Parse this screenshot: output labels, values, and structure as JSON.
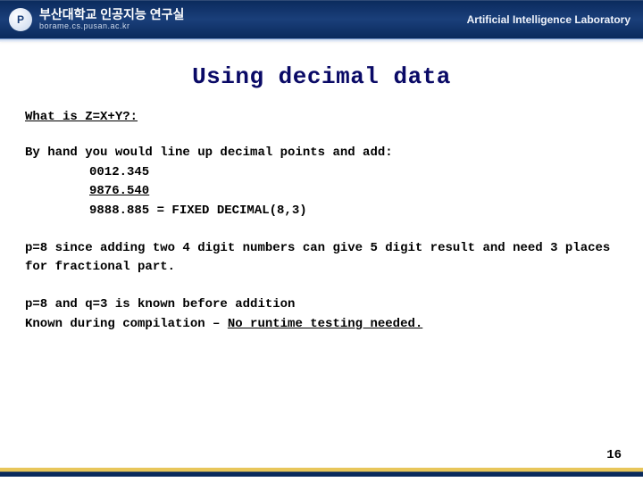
{
  "header": {
    "logo_letter": "P",
    "korean": "부산대학교 인공지능 연구실",
    "url": "borame.cs.pusan.ac.kr",
    "lab": "Artificial Intelligence Laboratory"
  },
  "title": "Using decimal data",
  "section_label": "What is Z=X+Y?:",
  "byhand_intro": "By hand you would line up decimal points and add:",
  "vals": {
    "a": "0012.345",
    "b": "9876.540",
    "sum": "9888.885 = FIXED DECIMAL(8,3)"
  },
  "para1": "p=8 since adding two 4 digit numbers can give 5 digit result and need 3 places for fractional part.",
  "para2_a": "p=8 and q=3 is known before addition",
  "para2_b_prefix": "Known during compilation – ",
  "para2_b_em": "No runtime testing needed.",
  "page_number": "16",
  "colors": {
    "title_color": "#0a0a66",
    "header_bg_top": "#0a2a5c",
    "header_bg_mid": "#1a3f7a",
    "footer_gold": "#e8c65a",
    "footer_navy": "#0a2a5c"
  }
}
